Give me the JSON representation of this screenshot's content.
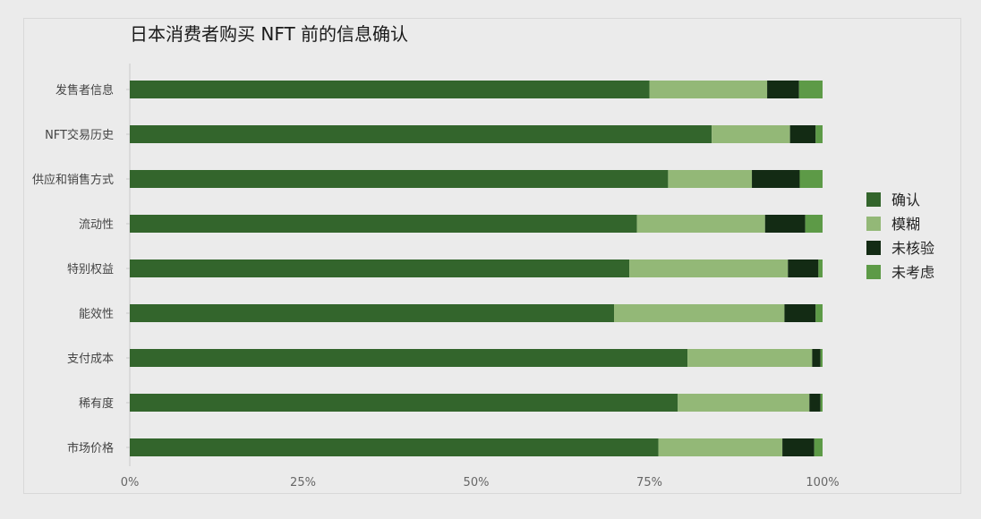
{
  "chart_data": {
    "type": "bar",
    "orientation": "horizontal",
    "stacked": true,
    "title": "日本消费者购买 NFT 前的信息确认",
    "xlabel": "",
    "ylabel": "",
    "xlim": [
      0,
      100
    ],
    "x_ticks": [
      "0%",
      "25%",
      "50%",
      "75%",
      "100%"
    ],
    "grid": false,
    "legend_position": "right",
    "categories": [
      "发售者信息",
      "NFT交易历史",
      "供应和销售方式",
      "流动性",
      "特别权益",
      "能效性",
      "支付成本",
      "稀有度",
      "市场价格"
    ],
    "series": [
      {
        "name": "确认",
        "color": "#33652c",
        "values": [
          75.0,
          84.0,
          77.7,
          73.2,
          72.1,
          69.9,
          80.5,
          79.1,
          76.3
        ]
      },
      {
        "name": "模糊",
        "color": "#93b877",
        "values": [
          17.0,
          11.3,
          12.1,
          18.5,
          22.9,
          24.6,
          18.0,
          19.0,
          17.9
        ]
      },
      {
        "name": "未核验",
        "color": "#132b14",
        "values": [
          4.6,
          3.7,
          6.9,
          5.8,
          4.4,
          4.5,
          1.2,
          1.6,
          4.6
        ]
      },
      {
        "name": "未考虑",
        "color": "#5d9a47",
        "values": [
          3.4,
          1.0,
          3.3,
          2.5,
          0.6,
          1.0,
          0.3,
          0.3,
          1.2
        ]
      }
    ]
  }
}
